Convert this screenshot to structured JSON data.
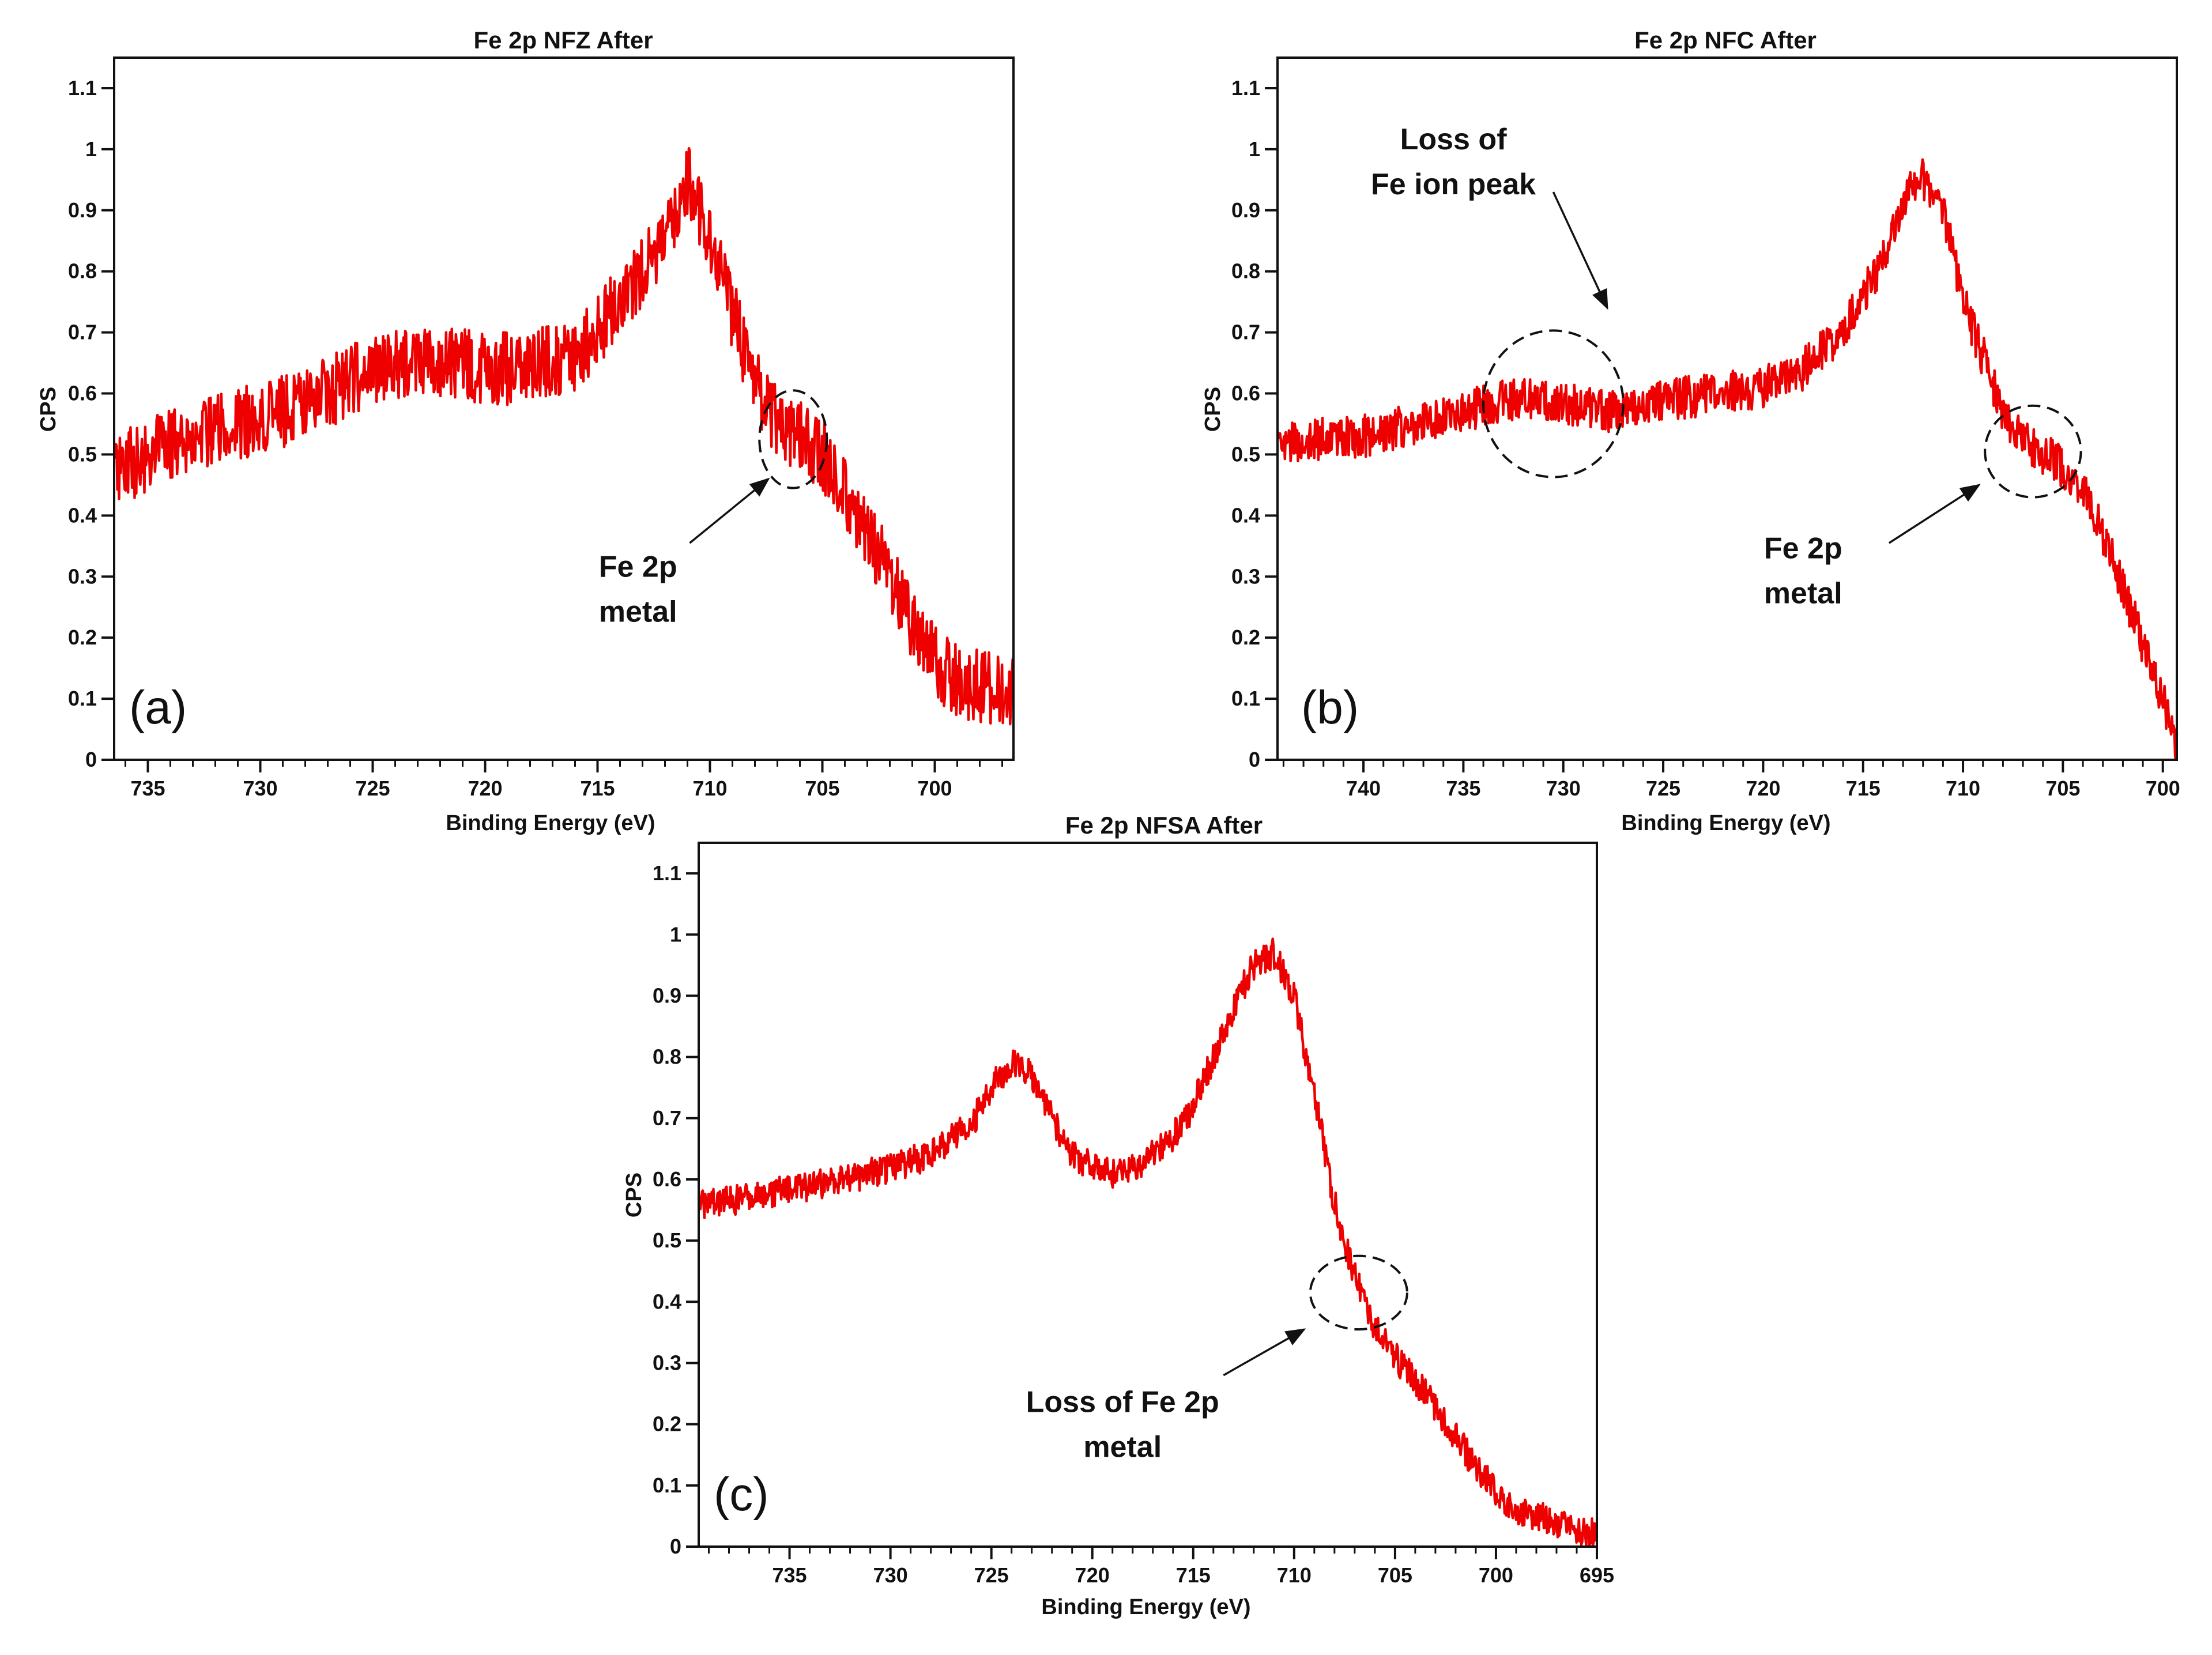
{
  "figure": {
    "colors": {
      "line": "#ee0000",
      "axis": "#111111",
      "annotation": "#111111",
      "background": "#ffffff"
    }
  },
  "chart_data": [
    {
      "type": "line",
      "title": "Fe 2p NFZ After",
      "xlabel": "Binding Energy (eV)",
      "ylabel": "CPS",
      "panel_label": "(a)",
      "xlim": [
        736.5,
        696.5
      ],
      "ylim": [
        0,
        1.15
      ],
      "x_ticks": [
        735,
        730,
        725,
        720,
        715,
        710,
        705,
        700
      ],
      "x_tick_labels": [
        "735",
        "730",
        "725",
        "720",
        "715",
        "710",
        "705",
        "700"
      ],
      "y_ticks": [
        0,
        0.1,
        0.2,
        0.3,
        0.4,
        0.5,
        0.6,
        0.7,
        0.8,
        0.9,
        1,
        1.1
      ],
      "y_tick_labels": [
        "0",
        "0.1",
        "0.2",
        "0.3",
        "0.4",
        "0.5",
        "0.6",
        "0.7",
        "0.8",
        "0.9",
        "1",
        "1.1"
      ],
      "noise": 0.06,
      "series": [
        {
          "name": "Fe 2p NFZ After",
          "x": [
            736.5,
            734,
            731,
            728,
            725,
            722,
            719,
            716,
            714,
            712,
            711,
            710,
            709,
            708,
            707,
            706,
            705,
            704,
            703,
            702,
            701,
            700,
            699,
            698,
            696.5
          ],
          "y": [
            0.47,
            0.52,
            0.55,
            0.58,
            0.64,
            0.65,
            0.64,
            0.66,
            0.75,
            0.85,
            0.95,
            0.86,
            0.73,
            0.62,
            0.55,
            0.53,
            0.5,
            0.44,
            0.37,
            0.3,
            0.22,
            0.16,
            0.13,
            0.12,
            0.11
          ]
        }
      ],
      "annotations": [
        {
          "lines": [
            "Fe 2p",
            "metal"
          ],
          "circle_center": [
            706.3,
            0.525
          ],
          "circle_radii": [
            1.5,
            0.08
          ],
          "arrow_from": [
            710.9,
            0.355
          ],
          "arrow_to": [
            707.4,
            0.46
          ],
          "text_at": [
            713.2,
            0.3
          ]
        }
      ]
    },
    {
      "type": "line",
      "title": "Fe 2p NFC After",
      "xlabel": "Binding Energy (eV)",
      "ylabel": "CPS",
      "panel_label": "(b)",
      "xlim": [
        744.3,
        699.3
      ],
      "ylim": [
        0,
        1.15
      ],
      "x_ticks": [
        740,
        735,
        730,
        725,
        720,
        715,
        710,
        705,
        700
      ],
      "x_tick_labels": [
        "740",
        "735",
        "730",
        "725",
        "720",
        "715",
        "710",
        "705",
        "700"
      ],
      "y_ticks": [
        0,
        0.1,
        0.2,
        0.3,
        0.4,
        0.5,
        0.6,
        0.7,
        0.8,
        0.9,
        1,
        1.1
      ],
      "y_tick_labels": [
        "0",
        "0.1",
        "0.2",
        "0.3",
        "0.4",
        "0.5",
        "0.6",
        "0.7",
        "0.8",
        "0.9",
        "1",
        "1.1"
      ],
      "noise": 0.035,
      "series": [
        {
          "name": "Fe 2p NFC After",
          "x": [
            744.3,
            740,
            736,
            733,
            730,
            728,
            725,
            722,
            720,
            718,
            716,
            714,
            713,
            712,
            711,
            710,
            709,
            708,
            707,
            706,
            705,
            704,
            703,
            702,
            701,
            700,
            699.3
          ],
          "y": [
            0.52,
            0.53,
            0.56,
            0.59,
            0.585,
            0.57,
            0.59,
            0.6,
            0.61,
            0.64,
            0.7,
            0.82,
            0.92,
            0.95,
            0.9,
            0.75,
            0.66,
            0.57,
            0.52,
            0.5,
            0.48,
            0.44,
            0.37,
            0.28,
            0.19,
            0.1,
            0.03
          ]
        }
      ],
      "annotations": [
        {
          "lines": [
            "Loss of",
            "Fe ion peak"
          ],
          "circle_center": [
            730.5,
            0.583
          ],
          "circle_radii": [
            3.5,
            0.12
          ],
          "arrow_from": [
            730.5,
            0.93
          ],
          "arrow_to": [
            727.8,
            0.74
          ],
          "text_at": [
            735.5,
            1.0
          ]
        },
        {
          "lines": [
            "Fe 2p",
            "metal"
          ],
          "circle_center": [
            706.5,
            0.505
          ],
          "circle_radii": [
            2.4,
            0.075
          ],
          "arrow_from": [
            713.7,
            0.355
          ],
          "arrow_to": [
            709.2,
            0.45
          ],
          "text_at": [
            718,
            0.33
          ]
        }
      ]
    },
    {
      "type": "line",
      "title": "Fe 2p NFSA After",
      "xlabel": "Binding Energy (eV)",
      "ylabel": "CPS",
      "panel_label": "(c)",
      "xlim": [
        739.5,
        695
      ],
      "ylim": [
        0,
        1.15
      ],
      "x_ticks": [
        735,
        730,
        725,
        720,
        715,
        710,
        705,
        700,
        695
      ],
      "x_tick_labels": [
        "735",
        "730",
        "725",
        "720",
        "715",
        "710",
        "705",
        "700",
        "695"
      ],
      "y_ticks": [
        0,
        0.1,
        0.2,
        0.3,
        0.4,
        0.5,
        0.6,
        0.7,
        0.8,
        0.9,
        1,
        1.1
      ],
      "y_tick_labels": [
        "0",
        "0.1",
        "0.2",
        "0.3",
        "0.4",
        "0.5",
        "0.6",
        "0.7",
        "0.8",
        "0.9",
        "1",
        "1.1"
      ],
      "noise": 0.025,
      "series": [
        {
          "name": "Fe 2p NFSA After",
          "x": [
            739.5,
            737,
            734,
            731,
            728,
            726,
            725,
            724,
            723,
            722,
            721,
            720,
            719,
            718,
            717,
            716,
            715,
            714,
            713,
            712,
            711,
            710,
            709,
            708,
            707,
            706,
            705,
            704,
            703,
            702,
            701,
            700,
            699,
            698,
            697,
            696,
            695
          ],
          "y": [
            0.56,
            0.57,
            0.59,
            0.61,
            0.64,
            0.69,
            0.75,
            0.79,
            0.77,
            0.7,
            0.64,
            0.62,
            0.61,
            0.62,
            0.64,
            0.67,
            0.72,
            0.8,
            0.88,
            0.95,
            0.97,
            0.9,
            0.74,
            0.56,
            0.44,
            0.36,
            0.31,
            0.27,
            0.23,
            0.18,
            0.13,
            0.09,
            0.06,
            0.05,
            0.04,
            0.03,
            0.02
          ]
        }
      ],
      "annotations": [
        {
          "lines": [
            "Loss of Fe 2p",
            "metal"
          ],
          "circle_center": [
            706.8,
            0.415
          ],
          "circle_radii": [
            2.4,
            0.06
          ],
          "arrow_from": [
            713.5,
            0.28
          ],
          "arrow_to": [
            709.5,
            0.355
          ],
          "text_at": [
            718.5,
            0.22
          ]
        }
      ]
    }
  ]
}
